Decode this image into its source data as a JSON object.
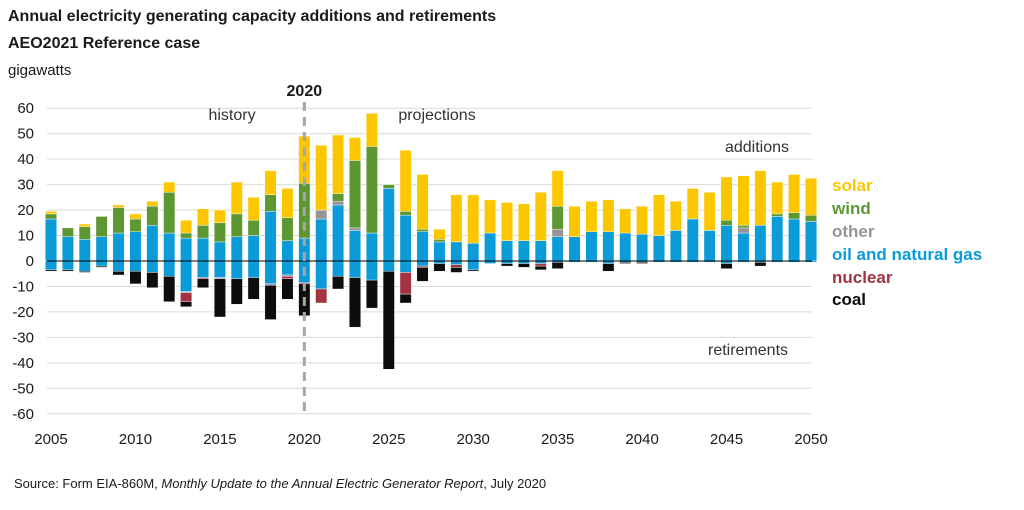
{
  "title": "Annual electricity generating capacity additions and retirements",
  "subtitle": "AEO2021 Reference case",
  "unit": "gigawatts",
  "source": {
    "prefix": "Source: Form EIA-860M, ",
    "italic": "Monthly Update to the Annual Electric Generator Report",
    "suffix": ", July 2020"
  },
  "annotations": {
    "divider_year": "2020",
    "history": "history",
    "projections": "projections",
    "additions": "additions",
    "retirements": "retirements"
  },
  "colors": {
    "solar": "#fcc700",
    "wind": "#5d9732",
    "other": "#959595",
    "oil_gas": "#0c9bd9",
    "nuclear": "#a33340",
    "coal": "#0d0d0d",
    "divider": "#a6a6a6",
    "grid": "#d9d9d9",
    "text": "#333333"
  },
  "legend": [
    {
      "key": "solar",
      "label": "solar"
    },
    {
      "key": "wind",
      "label": "wind"
    },
    {
      "key": "other",
      "label": "other"
    },
    {
      "key": "oil_gas",
      "label": "oil and natural gas"
    },
    {
      "key": "nuclear",
      "label": "nuclear"
    },
    {
      "key": "coal",
      "label": "coal"
    }
  ],
  "chart_data": {
    "type": "bar",
    "stacked": true,
    "x_label": "",
    "y_label": "gigawatts",
    "ylim": [
      -60,
      60
    ],
    "yticks": [
      -60,
      -50,
      -40,
      -30,
      -20,
      -10,
      0,
      10,
      20,
      30,
      40,
      50,
      60
    ],
    "xlim": [
      2005,
      2050
    ],
    "xticks": [
      2005,
      2010,
      2015,
      2020,
      2025,
      2030,
      2035,
      2040,
      2045,
      2050
    ],
    "grid": true,
    "legend_position": "right",
    "years": [
      2005,
      2006,
      2007,
      2008,
      2009,
      2010,
      2011,
      2012,
      2013,
      2014,
      2015,
      2016,
      2017,
      2018,
      2019,
      2020,
      2021,
      2022,
      2023,
      2024,
      2025,
      2026,
      2027,
      2028,
      2029,
      2030,
      2031,
      2032,
      2033,
      2034,
      2035,
      2036,
      2037,
      2038,
      2039,
      2040,
      2041,
      2042,
      2043,
      2044,
      2045,
      2046,
      2047,
      2048,
      2049,
      2050
    ],
    "additions": {
      "oil_gas": [
        16.5,
        9.5,
        8.5,
        9.5,
        11,
        11.5,
        14,
        11,
        9,
        9,
        7.5,
        9.5,
        10,
        19.5,
        8,
        9,
        16.5,
        22,
        12,
        11,
        28.5,
        18,
        11.5,
        7.5,
        7.5,
        7,
        11,
        8,
        8,
        8,
        9.5,
        9.5,
        11.5,
        11.5,
        11,
        10.5,
        10,
        12,
        16.5,
        12,
        14,
        11,
        14,
        17.5,
        16.5,
        15.5
      ],
      "other": [
        0,
        0,
        0,
        0,
        0,
        0,
        0,
        0,
        0,
        0,
        0,
        0,
        0,
        0,
        0,
        0,
        3.5,
        1.5,
        1,
        0,
        0,
        0,
        0,
        0,
        0,
        0,
        0,
        0,
        0,
        0,
        3,
        0,
        0,
        0,
        0,
        0,
        0,
        0,
        0,
        0,
        0,
        2,
        0,
        0,
        0,
        0
      ],
      "wind": [
        2,
        3.5,
        5,
        8,
        10,
        5,
        7.5,
        16,
        2,
        5,
        7.5,
        9,
        6,
        6.5,
        9,
        21.5,
        0,
        3,
        26.5,
        34,
        1.5,
        1.5,
        1,
        1,
        0,
        0,
        0,
        0,
        0,
        0,
        9,
        0,
        0,
        0,
        0,
        0,
        0,
        0,
        0,
        0,
        2,
        1,
        0,
        1,
        2.5,
        2.5
      ],
      "solar": [
        1,
        0,
        1,
        0,
        1,
        2,
        2,
        4,
        5,
        6.5,
        5,
        12.5,
        9,
        9.5,
        11.5,
        18.5,
        25.5,
        23,
        9,
        13,
        0,
        24,
        21.5,
        4,
        18.5,
        19,
        13,
        15,
        14.5,
        19,
        14,
        12,
        12,
        12.5,
        9.5,
        11,
        16,
        11.5,
        12,
        15,
        17,
        19.5,
        21.5,
        12.5,
        15,
        14.5
      ]
    },
    "retirements": {
      "oil_gas": [
        -3.5,
        -3.5,
        -4,
        -2,
        -4,
        -4,
        -4.5,
        -6,
        -12,
        -6.5,
        -6.5,
        -7,
        -6.5,
        -9,
        -5.5,
        -8.5,
        -11,
        -6,
        -6.5,
        -7.5,
        -4,
        -4.5,
        -2,
        -1,
        -1.5,
        -3.5,
        -1,
        -1,
        -1,
        -1,
        -0.5,
        -0.5,
        -0.5,
        -1,
        -0.5,
        -0.5,
        -0.5,
        -0.5,
        -0.5,
        -0.5,
        -1,
        -0.5,
        -0.5,
        -0.5,
        -0.5,
        -0.5
      ],
      "other": [
        0,
        0,
        0,
        0,
        0,
        0,
        0,
        0,
        -0.5,
        0,
        -0.5,
        0,
        0,
        -0.5,
        -0.5,
        0,
        0,
        0,
        0,
        0,
        0,
        0,
        0,
        0,
        0,
        0,
        0,
        0,
        0,
        0,
        0,
        0,
        0,
        0,
        0,
        0,
        0,
        0,
        0,
        0,
        0,
        0,
        0,
        0,
        0,
        0
      ],
      "nuclear": [
        0,
        0,
        0,
        0,
        0,
        0,
        0,
        0,
        -3.5,
        -0.5,
        0,
        0,
        0,
        0,
        -1,
        -0.5,
        -5.5,
        0,
        0,
        0,
        0,
        -8.5,
        -0.5,
        0,
        -1,
        0,
        0,
        0,
        0,
        -1,
        0,
        0,
        0,
        0,
        0,
        0,
        0,
        0,
        0,
        0,
        0,
        0,
        0,
        0,
        0,
        0
      ],
      "coal": [
        -0.5,
        -0.5,
        -0.5,
        -0.5,
        -1.5,
        -5,
        -6,
        -10,
        -2,
        -3.5,
        -15,
        -10,
        -8.5,
        -13.5,
        -8,
        -12.5,
        0,
        -5,
        -19.5,
        -11,
        -38.5,
        -3.5,
        -5.5,
        -3,
        -2,
        -0.5,
        0,
        -1,
        -1.5,
        -1.5,
        -2.5,
        0,
        0,
        -3,
        -0.5,
        -0.5,
        0,
        0,
        0,
        0,
        -2,
        0,
        -1.5,
        0,
        0,
        0
      ]
    }
  }
}
